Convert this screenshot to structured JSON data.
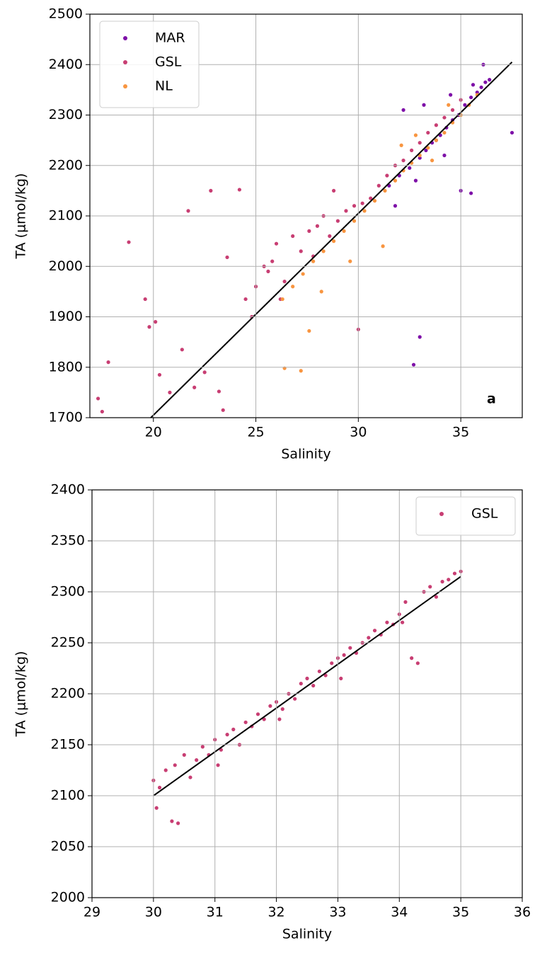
{
  "chart_data": [
    {
      "type": "scatter",
      "xlabel": "Salinity",
      "ylabel": "TA (μmol/kg)",
      "annotation": "a",
      "xlim": [
        16.9,
        38
      ],
      "ylim": [
        1700,
        2500
      ],
      "xticks": [
        20,
        25,
        30,
        35
      ],
      "yticks": [
        1700,
        1800,
        1900,
        2000,
        2100,
        2200,
        2300,
        2400,
        2500
      ],
      "grid": true,
      "legend": "upper left",
      "series": [
        {
          "name": "MAR",
          "color": "#7e10a8",
          "x": [
            31.5,
            32,
            32.5,
            33,
            33.3,
            33.6,
            34,
            34.3,
            34.6,
            34.9,
            35.2,
            35.5,
            35.8,
            36,
            36.2,
            36.4,
            35.6,
            34.5,
            33.2,
            32.2,
            33,
            32.7,
            37.5,
            35,
            35.5,
            36.1,
            34.2,
            32.8,
            31.8,
            33.8
          ],
          "values": [
            2160,
            2180,
            2195,
            2215,
            2230,
            2245,
            2260,
            2275,
            2290,
            2300,
            2320,
            2335,
            2345,
            2355,
            2365,
            2370,
            2360,
            2340,
            2320,
            2310,
            1860,
            1805,
            2265,
            2150,
            2145,
            2400,
            2220,
            2170,
            2120,
            2250
          ]
        },
        {
          "name": "GSL",
          "color": "#c83e73",
          "x": [
            17.3,
            17.5,
            17.8,
            18.8,
            19.6,
            19.8,
            20.1,
            20.3,
            20.8,
            21.4,
            21.7,
            22,
            22.5,
            23.2,
            23.6,
            24.2,
            24.5,
            25,
            25.4,
            25.8,
            26,
            26.4,
            26.8,
            27.2,
            27.6,
            28,
            28.3,
            28.6,
            29,
            29.4,
            29.8,
            30.2,
            30.6,
            31,
            31.4,
            31.8,
            32.2,
            32.6,
            33,
            33.4,
            33.8,
            34.2,
            34.6,
            35,
            22.8,
            23.4,
            27.8,
            28.8,
            30,
            26.2,
            25.6,
            24.8
          ],
          "values": [
            1738,
            1712,
            1810,
            2048,
            1935,
            1880,
            1890,
            1785,
            1750,
            1835,
            2110,
            1760,
            1790,
            1752,
            2018,
            2152,
            1935,
            1960,
            2000,
            2010,
            2045,
            1970,
            2060,
            2030,
            2070,
            2080,
            2100,
            2060,
            2090,
            2110,
            2120,
            2125,
            2135,
            2160,
            2180,
            2200,
            2210,
            2230,
            2245,
            2265,
            2280,
            2295,
            2310,
            2330,
            2150,
            1715,
            2020,
            2150,
            1875,
            1935,
            1990,
            1900
          ]
        },
        {
          "name": "NL",
          "color": "#f89540",
          "x": [
            26.3,
            26.8,
            27.3,
            27.8,
            28.3,
            28.8,
            29.3,
            29.8,
            30.3,
            30.8,
            31.3,
            31.8,
            32.2,
            32.6,
            33,
            33.4,
            33.8,
            34.2,
            34.6,
            35,
            35.4,
            35.8,
            26.4,
            27.2,
            27.6,
            28.2,
            29.6,
            31.2,
            32.1,
            32.8,
            34.4,
            33.6
          ],
          "values": [
            1935,
            1960,
            1985,
            2010,
            2030,
            2050,
            2070,
            2090,
            2110,
            2130,
            2150,
            2170,
            2190,
            2205,
            2220,
            2235,
            2250,
            2265,
            2285,
            2300,
            2320,
            2340,
            1798,
            1793,
            1872,
            1950,
            2010,
            2040,
            2240,
            2260,
            2320,
            2210
          ]
        }
      ],
      "fit": {
        "color": "#000000",
        "x": [
          19.6,
          37.5
        ],
        "values": [
          1689,
          2405
        ]
      }
    },
    {
      "type": "scatter",
      "xlabel": "Salinity",
      "ylabel": "TA (μmol/kg)",
      "xlim": [
        29,
        36
      ],
      "ylim": [
        2000,
        2400
      ],
      "xticks": [
        29,
        30,
        31,
        32,
        33,
        34,
        35,
        36
      ],
      "yticks": [
        2000,
        2050,
        2100,
        2150,
        2200,
        2250,
        2300,
        2350,
        2400
      ],
      "grid": true,
      "legend": "upper right",
      "series": [
        {
          "name": "GSL",
          "color": "#c83e73",
          "x": [
            30.0,
            30.1,
            30.2,
            30.3,
            30.4,
            30.35,
            30.5,
            30.6,
            30.7,
            30.8,
            30.9,
            31.0,
            31.1,
            31.2,
            31.3,
            31.4,
            31.5,
            31.6,
            31.7,
            31.8,
            31.9,
            32.0,
            32.1,
            32.2,
            32.3,
            32.4,
            32.5,
            32.6,
            32.7,
            32.8,
            32.9,
            33.0,
            33.1,
            33.2,
            33.3,
            33.4,
            33.5,
            33.6,
            33.7,
            33.8,
            33.9,
            34.0,
            34.1,
            34.2,
            34.3,
            34.4,
            34.5,
            34.6,
            34.7,
            34.8,
            34.9,
            35.0,
            30.05,
            31.05,
            32.05,
            33.05,
            34.05
          ],
          "values": [
            2115,
            2108,
            2125,
            2075,
            2073,
            2130,
            2140,
            2118,
            2135,
            2148,
            2140,
            2155,
            2145,
            2160,
            2165,
            2150,
            2172,
            2168,
            2180,
            2175,
            2188,
            2192,
            2185,
            2200,
            2195,
            2210,
            2215,
            2208,
            2222,
            2218,
            2230,
            2235,
            2238,
            2245,
            2240,
            2250,
            2255,
            2262,
            2258,
            2270,
            2268,
            2278,
            2290,
            2235,
            2230,
            2300,
            2305,
            2295,
            2310,
            2312,
            2318,
            2320,
            2088,
            2130,
            2175,
            2215,
            2270
          ]
        }
      ],
      "fit": {
        "color": "#000000",
        "x": [
          30,
          35
        ],
        "values": [
          2100,
          2315
        ]
      }
    }
  ]
}
